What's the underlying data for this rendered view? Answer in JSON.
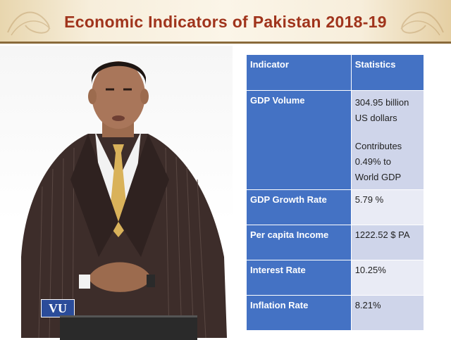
{
  "slide": {
    "title": "Economic Indicators of Pakistan 2018-19"
  },
  "logo": {
    "text": "VU"
  },
  "table": {
    "headers": [
      "Indicator",
      "Statistics"
    ],
    "rows": [
      {
        "indicator": "GDP Volume",
        "statistic_lines": [
          "304.95 billion",
          "US dollars"
        ],
        "note_lines": [
          "Contributes",
          "0.49% to",
          "World GDP"
        ]
      },
      {
        "indicator": "GDP Growth Rate",
        "statistic": "5.79 %"
      },
      {
        "indicator": "Per capita Income",
        "statistic": "1222.52 $ PA"
      },
      {
        "indicator": "Interest Rate",
        "statistic": "10.25%"
      },
      {
        "indicator": "Inflation Rate",
        "statistic": "8.21%"
      }
    ]
  },
  "colors": {
    "title": "#a0341c",
    "header_blue": "#4472c4",
    "row_light_1": "#cfd5ea",
    "row_light_2": "#e9ebf5"
  }
}
